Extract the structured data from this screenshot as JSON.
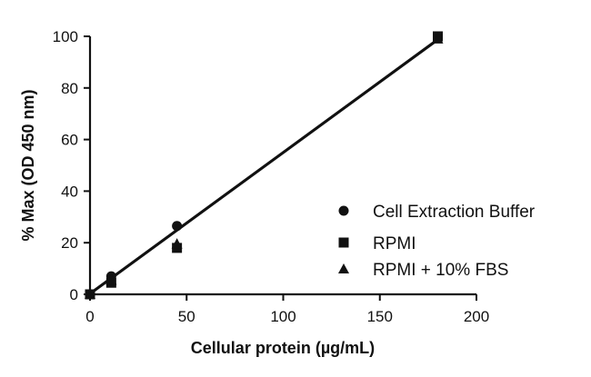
{
  "chart_data": {
    "type": "scatter",
    "xlabel": "Cellular protein (µg/mL)",
    "ylabel": "% Max (OD 450 nm)",
    "xlim": [
      0,
      200
    ],
    "ylim": [
      0,
      100
    ],
    "xticks": [
      0,
      50,
      100,
      150,
      200
    ],
    "yticks": [
      0,
      20,
      40,
      60,
      80,
      100
    ],
    "grid": false,
    "legend_position": "bottom-right",
    "series": [
      {
        "name": "Cell Extraction Buffer",
        "marker": "circle",
        "points": [
          [
            0,
            0
          ],
          [
            11,
            7
          ],
          [
            45,
            26.5
          ],
          [
            180,
            99.5
          ]
        ],
        "fit_line": [
          [
            0,
            0.5
          ],
          [
            180,
            99
          ]
        ]
      },
      {
        "name": "RPMI",
        "marker": "square",
        "points": [
          [
            0,
            0
          ],
          [
            11,
            4.5
          ],
          [
            45,
            18
          ],
          [
            180,
            100
          ]
        ],
        "fit_line": [
          [
            0,
            0
          ],
          [
            180,
            98.5
          ]
        ]
      },
      {
        "name": "RPMI + 10% FBS",
        "marker": "triangle",
        "points": [
          [
            0,
            0
          ],
          [
            11,
            5.5
          ],
          [
            45,
            19.5
          ],
          [
            180,
            99
          ]
        ],
        "fit_line": [
          [
            0,
            0.3
          ],
          [
            180,
            98.8
          ]
        ]
      }
    ]
  },
  "colors": {
    "ink": "#111111"
  }
}
